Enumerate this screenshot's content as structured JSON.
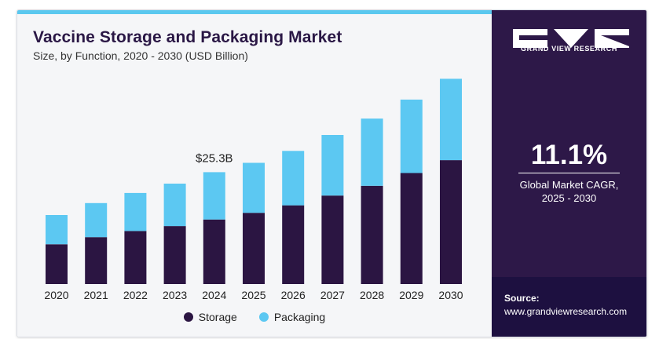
{
  "title": "Vaccine Storage and Packaging Market",
  "subtitle": "Size, by Function, 2020 - 2030 (USD Billion)",
  "colors": {
    "storage": "#2b1542",
    "packaging": "#5cc8f2",
    "panel": "#2d1848",
    "accent": "#5ac8ef"
  },
  "brand": {
    "name": "GRAND VIEW RESEARCH"
  },
  "cagr": {
    "value": "11.1%",
    "label_line1": "Global Market CAGR,",
    "label_line2": "2025 - 2030"
  },
  "source": {
    "label": "Source:",
    "url": "www.grandviewresearch.com"
  },
  "chart_data": {
    "type": "bar",
    "stacked": true,
    "categories": [
      "2020",
      "2021",
      "2022",
      "2023",
      "2024",
      "2025",
      "2026",
      "2027",
      "2028",
      "2029",
      "2030"
    ],
    "series": [
      {
        "name": "Storage",
        "values": [
          9.0,
          10.6,
          12.0,
          13.1,
          14.6,
          16.1,
          17.8,
          20.0,
          22.2,
          25.1,
          28.0
        ]
      },
      {
        "name": "Packaging",
        "values": [
          6.6,
          7.7,
          8.6,
          9.6,
          10.7,
          11.3,
          12.3,
          13.7,
          15.2,
          16.6,
          18.4
        ]
      }
    ],
    "annotations": [
      {
        "category": "2024",
        "text": "$25.3B"
      }
    ],
    "ylim": [
      0,
      47
    ],
    "grid": false,
    "legend_position": "bottom"
  }
}
